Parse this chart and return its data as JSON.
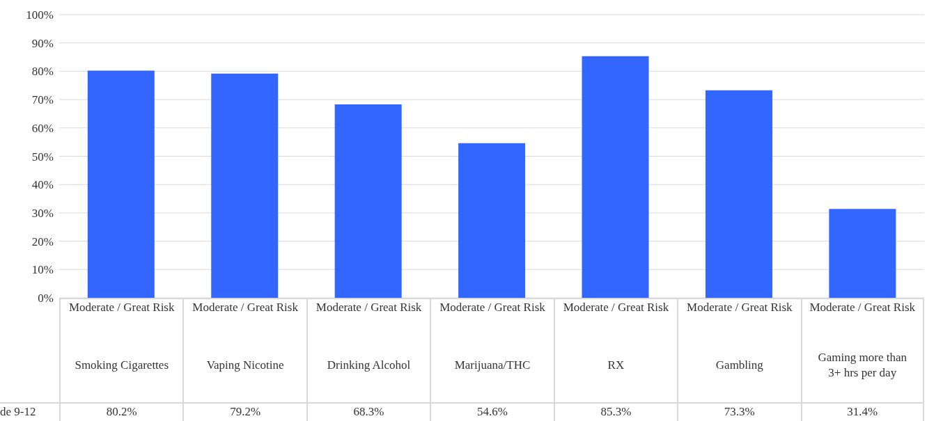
{
  "chart_data": {
    "type": "bar",
    "categories": [
      "Moderate / Great Risk\nSmoking Cigarettes",
      "Moderate / Great Risk\nVaping Nicotine",
      "Moderate / Great Risk\nDrinking Alcohol",
      "Moderate / Great Risk\nMarijuana/THC",
      "Moderate / Great Risk\nRX",
      "Moderate / Great Risk\nGambling",
      "Moderate / Great Risk\nGaming more than 3+ hrs per day"
    ],
    "series": [
      {
        "name": "de 9-12",
        "color": "#3366ff",
        "values": [
          80.2,
          79.2,
          68.3,
          54.6,
          85.3,
          73.3,
          31.4
        ],
        "value_labels": [
          "80.2%",
          "79.2%",
          "68.3%",
          "54.6%",
          "85.3%",
          "73.3%",
          "31.4%"
        ]
      }
    ],
    "ylim": [
      0,
      100
    ],
    "yticks": [
      {
        "value": 0,
        "label": "0%"
      },
      {
        "value": 10,
        "label": "10%"
      },
      {
        "value": 20,
        "label": "20%"
      },
      {
        "value": 30,
        "label": "30%"
      },
      {
        "value": 40,
        "label": "40%"
      },
      {
        "value": 50,
        "label": "50%"
      },
      {
        "value": 60,
        "label": "60%"
      },
      {
        "value": 70,
        "label": "70%"
      },
      {
        "value": 80,
        "label": "80%"
      },
      {
        "value": 90,
        "label": "90%"
      },
      {
        "value": 100,
        "label": "100%"
      }
    ],
    "grid": "y"
  }
}
